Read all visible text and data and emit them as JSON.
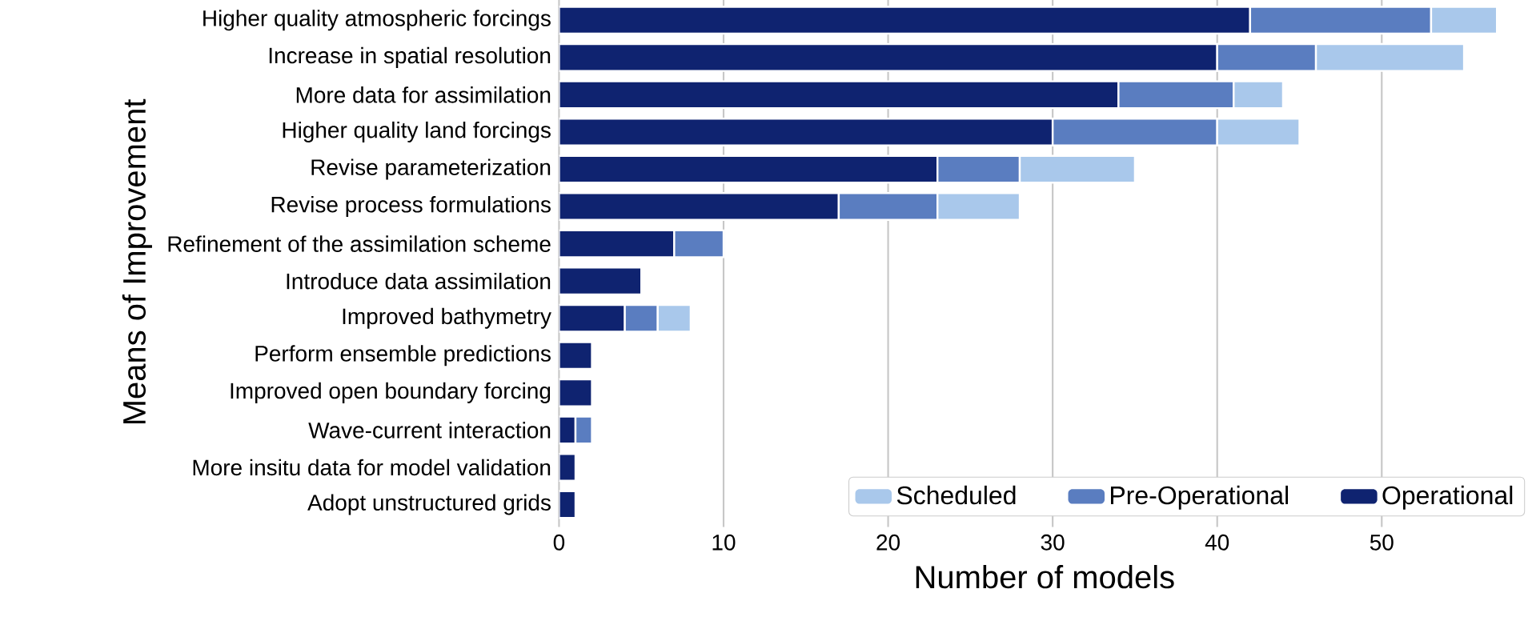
{
  "chart_data": {
    "type": "bar",
    "orientation": "horizontal",
    "stacked": true,
    "xlabel": "Number of models",
    "ylabel": "Means of Improvement",
    "categories": [
      "Higher quality atmospheric forcings",
      "Increase in spatial resolution",
      "More data for assimilation",
      "Higher quality land forcings",
      "Revise parameterization",
      "Revise process formulations",
      "Refinement of the assimilation scheme",
      "Introduce data assimilation",
      "Improved bathymetry",
      "Perform ensemble predictions",
      "Improved open boundary forcing",
      "Wave-current interaction",
      "More insitu data for model validation",
      "Adopt unstructured grids"
    ],
    "series": [
      {
        "name": "Operational",
        "color": "#0f2370",
        "values": [
          42,
          40,
          34,
          30,
          23,
          17,
          7,
          5,
          4,
          2,
          2,
          1,
          1,
          1
        ]
      },
      {
        "name": "Pre-Operational",
        "color": "#5a7dc0",
        "values": [
          11,
          6,
          7,
          10,
          5,
          6,
          3,
          null,
          2,
          null,
          null,
          1,
          null,
          null
        ]
      },
      {
        "name": "Scheduled",
        "color": "#a9c8eb",
        "values": [
          4,
          9,
          3,
          5,
          7,
          5,
          null,
          null,
          2,
          null,
          null,
          null,
          null,
          null
        ]
      }
    ],
    "xlim": [
      0,
      59
    ],
    "xticks": [
      0,
      10,
      20,
      30,
      40,
      50
    ],
    "grid": "x",
    "legend": "bottom right"
  }
}
